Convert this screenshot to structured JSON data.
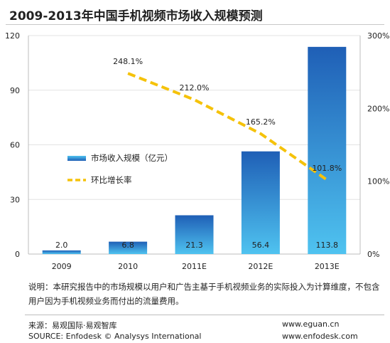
{
  "chart_data": {
    "type": "bar",
    "title": "2009-2013年中国手机视频市场收入规模预测",
    "categories": [
      "2009",
      "2010",
      "2011E",
      "2012E",
      "2013E"
    ],
    "series": [
      {
        "name": "市场收入规模（亿元）",
        "type": "bar",
        "axis": "left",
        "values": [
          2.0,
          6.8,
          21.3,
          56.4,
          113.8
        ],
        "labels": [
          "2.0",
          "6.8",
          "21.3",
          "56.4",
          "113.8"
        ]
      },
      {
        "name": "环比增长率",
        "type": "line",
        "axis": "right",
        "style": "dashed",
        "values": [
          null,
          248.1,
          212.0,
          165.2,
          101.8
        ],
        "labels": [
          "",
          "248.1%",
          "212.0%",
          "165.2%",
          "101.8%"
        ]
      }
    ],
    "left_axis": {
      "min": 0,
      "max": 120,
      "ticks": [
        "0",
        "30",
        "60",
        "90",
        "120"
      ]
    },
    "right_axis": {
      "min": 0,
      "max": 300,
      "ticks": [
        "0%",
        "100%",
        "200%",
        "300%"
      ]
    },
    "legend_placement": "left-middle",
    "colors": {
      "bar_top": "#1f5fb6",
      "bar_bottom": "#4fc3f0",
      "line": "#f5c20a"
    }
  },
  "note": "说明：本研究报告中的市场规模以用户和广告主基于手机视频业务的实际投入为计算维度，不包含用户因为手机视频业务而付出的流量费用。",
  "source_cn": "来源：易观国际·易观智库",
  "source_en": "SOURCE: Enfodesk © Analysys International",
  "url_1": "www.eguan.cn",
  "url_2": "www.enfodesk.com"
}
